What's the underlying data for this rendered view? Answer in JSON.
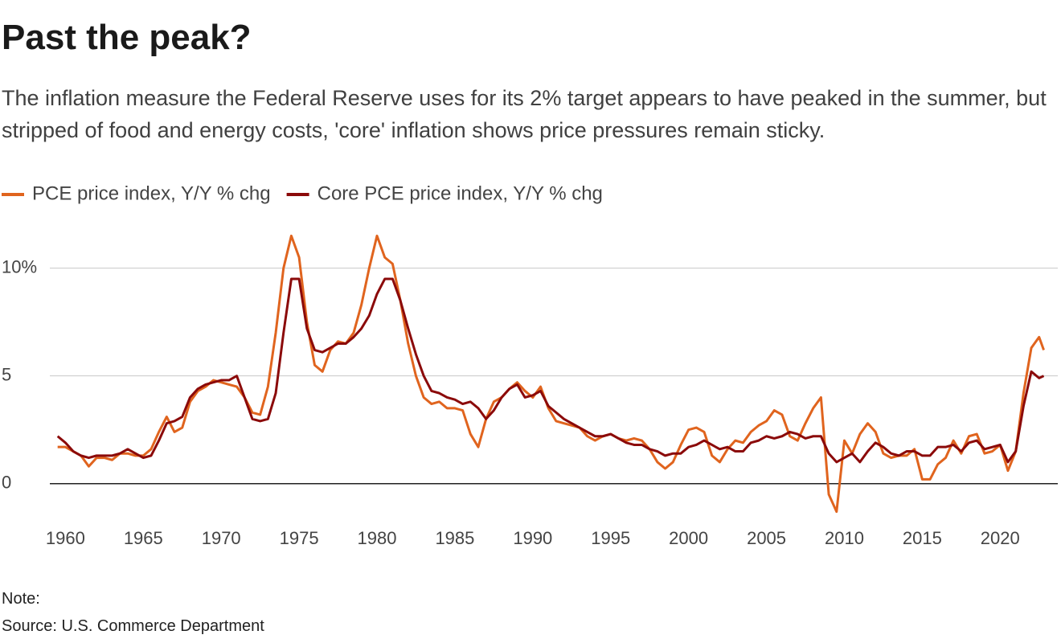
{
  "chart_data": {
    "type": "line",
    "title": "Past the peak?",
    "subtitle": "The inflation measure the Federal Reserve uses for its 2% target appears to have peaked in the summer, but stripped of food and energy costs, 'core' inflation shows price pressures remain sticky.",
    "note": "Note:",
    "source": "Source: U.S. Commerce Department",
    "x": [
      1959.5,
      1960,
      1960.5,
      1961,
      1961.5,
      1962,
      1962.5,
      1963,
      1963.5,
      1964,
      1964.5,
      1965,
      1965.5,
      1966,
      1966.5,
      1967,
      1967.5,
      1968,
      1968.5,
      1969,
      1969.5,
      1970,
      1970.5,
      1971,
      1971.5,
      1972,
      1972.5,
      1973,
      1973.5,
      1974,
      1974.5,
      1975,
      1975.5,
      1976,
      1976.5,
      1977,
      1977.5,
      1978,
      1978.5,
      1979,
      1979.5,
      1980,
      1980.5,
      1981,
      1981.5,
      1982,
      1982.5,
      1983,
      1983.5,
      1984,
      1984.5,
      1985,
      1985.5,
      1986,
      1986.5,
      1987,
      1987.5,
      1988,
      1988.5,
      1989,
      1989.5,
      1990,
      1990.5,
      1991,
      1991.5,
      1992,
      1992.5,
      1993,
      1993.5,
      1994,
      1994.5,
      1995,
      1995.5,
      1996,
      1996.5,
      1997,
      1997.5,
      1998,
      1998.5,
      1999,
      1999.5,
      2000,
      2000.5,
      2001,
      2001.5,
      2002,
      2002.5,
      2003,
      2003.5,
      2004,
      2004.5,
      2005,
      2005.5,
      2006,
      2006.5,
      2007,
      2007.5,
      2008,
      2008.5,
      2009,
      2009.5,
      2010,
      2010.5,
      2011,
      2011.5,
      2012,
      2012.5,
      2013,
      2013.5,
      2014,
      2014.5,
      2015,
      2015.5,
      2016,
      2016.5,
      2017,
      2017.5,
      2018,
      2018.5,
      2019,
      2019.5,
      2020,
      2020.5,
      2021,
      2021.5,
      2022,
      2022.5,
      2022.8
    ],
    "series": [
      {
        "name": "PCE price index, Y/Y % chg",
        "color": "#e0641e",
        "values": [
          1.7,
          1.7,
          1.5,
          1.3,
          0.8,
          1.2,
          1.2,
          1.1,
          1.4,
          1.4,
          1.3,
          1.3,
          1.6,
          2.4,
          3.1,
          2.4,
          2.6,
          3.8,
          4.3,
          4.5,
          4.8,
          4.7,
          4.6,
          4.5,
          4.0,
          3.3,
          3.2,
          4.5,
          7.0,
          10.0,
          11.5,
          10.5,
          7.5,
          5.5,
          5.2,
          6.2,
          6.6,
          6.5,
          7.0,
          8.3,
          10.0,
          11.5,
          10.5,
          10.2,
          8.5,
          6.5,
          5.0,
          4.0,
          3.7,
          3.8,
          3.5,
          3.5,
          3.4,
          2.3,
          1.7,
          3.0,
          3.8,
          4.0,
          4.4,
          4.7,
          4.3,
          4.0,
          4.5,
          3.5,
          2.9,
          2.8,
          2.7,
          2.6,
          2.2,
          2.0,
          2.2,
          2.3,
          2.1,
          2.0,
          2.1,
          2.0,
          1.6,
          1.0,
          0.7,
          1.0,
          1.8,
          2.5,
          2.6,
          2.4,
          1.3,
          1.0,
          1.6,
          2.0,
          1.9,
          2.4,
          2.7,
          2.9,
          3.4,
          3.2,
          2.2,
          2.0,
          2.8,
          3.5,
          4.0,
          -0.5,
          -1.3,
          2.0,
          1.4,
          2.3,
          2.8,
          2.4,
          1.4,
          1.2,
          1.3,
          1.3,
          1.6,
          0.2,
          0.2,
          0.9,
          1.2,
          2.0,
          1.4,
          2.2,
          2.3,
          1.4,
          1.5,
          1.8,
          0.6,
          1.5,
          4.2,
          6.3,
          6.8,
          6.2
        ]
      },
      {
        "name": "Core PCE price index, Y/Y % chg",
        "color": "#8b0a0a",
        "values": [
          2.2,
          1.9,
          1.5,
          1.3,
          1.2,
          1.3,
          1.3,
          1.3,
          1.4,
          1.6,
          1.4,
          1.2,
          1.3,
          2.0,
          2.8,
          2.9,
          3.1,
          4.0,
          4.4,
          4.6,
          4.7,
          4.8,
          4.8,
          5.0,
          4.0,
          3.0,
          2.9,
          3.0,
          4.2,
          7.0,
          9.5,
          9.5,
          7.2,
          6.2,
          6.1,
          6.3,
          6.5,
          6.5,
          6.8,
          7.2,
          7.8,
          8.8,
          9.5,
          9.5,
          8.5,
          7.2,
          6.0,
          5.0,
          4.3,
          4.2,
          4.0,
          3.9,
          3.7,
          3.8,
          3.5,
          3.0,
          3.4,
          4.0,
          4.4,
          4.6,
          4.0,
          4.1,
          4.3,
          3.6,
          3.3,
          3.0,
          2.8,
          2.6,
          2.4,
          2.2,
          2.2,
          2.3,
          2.1,
          1.9,
          1.8,
          1.8,
          1.6,
          1.5,
          1.3,
          1.4,
          1.4,
          1.7,
          1.8,
          2.0,
          1.8,
          1.6,
          1.7,
          1.5,
          1.5,
          1.9,
          2.0,
          2.2,
          2.1,
          2.2,
          2.4,
          2.3,
          2.1,
          2.2,
          2.2,
          1.4,
          1.0,
          1.2,
          1.4,
          1.0,
          1.5,
          1.9,
          1.7,
          1.4,
          1.3,
          1.5,
          1.5,
          1.3,
          1.3,
          1.7,
          1.7,
          1.8,
          1.5,
          1.9,
          2.0,
          1.6,
          1.7,
          1.8,
          1.0,
          1.5,
          3.6,
          5.2,
          4.9,
          5.0
        ]
      }
    ],
    "xlim": [
      1959,
      2023.7
    ],
    "ylim": [
      -1.8,
      12
    ],
    "xticks": [
      1960,
      1965,
      1970,
      1975,
      1980,
      1985,
      1990,
      1995,
      2000,
      2005,
      2010,
      2015,
      2020
    ],
    "yticks": [
      0,
      5,
      {
        "value": 10,
        "label": "10%"
      }
    ],
    "grid": true
  }
}
